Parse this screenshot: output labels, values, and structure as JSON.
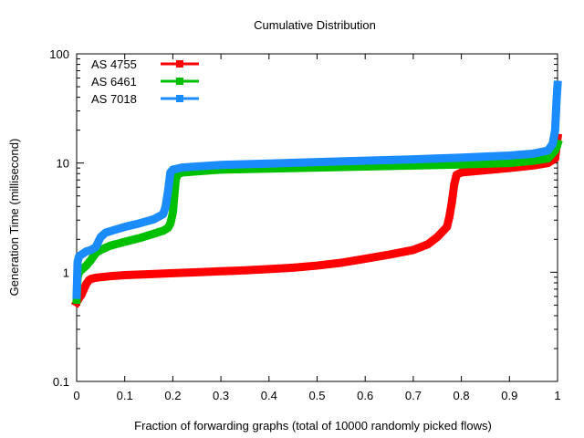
{
  "chart_data": {
    "type": "line",
    "title": "Cumulative Distribution",
    "xlabel": "Fraction of forwarding graphs (total of 10000 randomly picked flows)",
    "ylabel": "Generation Time (millisecond)",
    "xlim": [
      0,
      1
    ],
    "ylim": [
      0.1,
      100
    ],
    "yscale": "log",
    "grid": false,
    "legend_position": "top-left",
    "x_ticks": [
      {
        "value": 0,
        "label": "0"
      },
      {
        "value": 0.1,
        "label": "0.1"
      },
      {
        "value": 0.2,
        "label": "0.2"
      },
      {
        "value": 0.3,
        "label": "0.3"
      },
      {
        "value": 0.4,
        "label": "0.4"
      },
      {
        "value": 0.5,
        "label": "0.5"
      },
      {
        "value": 0.6,
        "label": "0.6"
      },
      {
        "value": 0.7,
        "label": "0.7"
      },
      {
        "value": 0.8,
        "label": "0.8"
      },
      {
        "value": 0.9,
        "label": "0.9"
      },
      {
        "value": 1,
        "label": "1"
      }
    ],
    "y_ticks": [
      {
        "value": 0.1,
        "label": "0.1"
      },
      {
        "value": 1,
        "label": "1"
      },
      {
        "value": 10,
        "label": "10"
      },
      {
        "value": 100,
        "label": "100"
      }
    ],
    "series": [
      {
        "name": "AS 4755",
        "color": "#ff0000",
        "points": [
          [
            0,
            0.53
          ],
          [
            0.005,
            0.58
          ],
          [
            0.01,
            0.62
          ],
          [
            0.015,
            0.7
          ],
          [
            0.02,
            0.78
          ],
          [
            0.025,
            0.84
          ],
          [
            0.03,
            0.87
          ],
          [
            0.04,
            0.89
          ],
          [
            0.05,
            0.9
          ],
          [
            0.07,
            0.92
          ],
          [
            0.1,
            0.94
          ],
          [
            0.15,
            0.96
          ],
          [
            0.2,
            0.98
          ],
          [
            0.25,
            1.0
          ],
          [
            0.3,
            1.02
          ],
          [
            0.35,
            1.04
          ],
          [
            0.4,
            1.07
          ],
          [
            0.45,
            1.1
          ],
          [
            0.5,
            1.15
          ],
          [
            0.55,
            1.22
          ],
          [
            0.6,
            1.33
          ],
          [
            0.65,
            1.45
          ],
          [
            0.7,
            1.6
          ],
          [
            0.73,
            1.8
          ],
          [
            0.75,
            2.1
          ],
          [
            0.77,
            2.6
          ],
          [
            0.775,
            3.2
          ],
          [
            0.78,
            4.3
          ],
          [
            0.785,
            6.3
          ],
          [
            0.79,
            7.8
          ],
          [
            0.8,
            8.2
          ],
          [
            0.85,
            8.6
          ],
          [
            0.9,
            9.0
          ],
          [
            0.95,
            9.5
          ],
          [
            0.98,
            10.0
          ],
          [
            0.995,
            11
          ],
          [
            1.0,
            17
          ]
        ]
      },
      {
        "name": "AS 6461",
        "color": "#00c000",
        "points": [
          [
            0,
            0.56
          ],
          [
            0.002,
            0.9
          ],
          [
            0.005,
            1.0
          ],
          [
            0.01,
            1.05
          ],
          [
            0.02,
            1.15
          ],
          [
            0.03,
            1.3
          ],
          [
            0.04,
            1.5
          ],
          [
            0.05,
            1.6
          ],
          [
            0.07,
            1.75
          ],
          [
            0.1,
            1.9
          ],
          [
            0.13,
            2.05
          ],
          [
            0.16,
            2.25
          ],
          [
            0.18,
            2.4
          ],
          [
            0.19,
            2.55
          ],
          [
            0.195,
            2.8
          ],
          [
            0.2,
            3.5
          ],
          [
            0.203,
            5.0
          ],
          [
            0.206,
            7.0
          ],
          [
            0.21,
            7.9
          ],
          [
            0.22,
            8.2
          ],
          [
            0.25,
            8.4
          ],
          [
            0.3,
            8.7
          ],
          [
            0.4,
            8.9
          ],
          [
            0.5,
            9.1
          ],
          [
            0.6,
            9.3
          ],
          [
            0.7,
            9.5
          ],
          [
            0.8,
            9.7
          ],
          [
            0.9,
            10.0
          ],
          [
            0.95,
            10.5
          ],
          [
            0.98,
            11
          ],
          [
            0.995,
            13
          ],
          [
            1.0,
            15
          ]
        ]
      },
      {
        "name": "AS 7018",
        "color": "#1a8cff",
        "points": [
          [
            0,
            0.62
          ],
          [
            0.002,
            1.25
          ],
          [
            0.005,
            1.4
          ],
          [
            0.01,
            1.45
          ],
          [
            0.02,
            1.55
          ],
          [
            0.03,
            1.6
          ],
          [
            0.04,
            1.7
          ],
          [
            0.045,
            1.9
          ],
          [
            0.05,
            2.1
          ],
          [
            0.06,
            2.3
          ],
          [
            0.08,
            2.45
          ],
          [
            0.1,
            2.6
          ],
          [
            0.13,
            2.8
          ],
          [
            0.16,
            3.05
          ],
          [
            0.18,
            3.4
          ],
          [
            0.185,
            4.0
          ],
          [
            0.19,
            5.5
          ],
          [
            0.195,
            8.2
          ],
          [
            0.2,
            8.7
          ],
          [
            0.22,
            9.1
          ],
          [
            0.25,
            9.3
          ],
          [
            0.3,
            9.6
          ],
          [
            0.4,
            9.9
          ],
          [
            0.5,
            10.2
          ],
          [
            0.6,
            10.5
          ],
          [
            0.7,
            10.8
          ],
          [
            0.8,
            11.2
          ],
          [
            0.9,
            11.7
          ],
          [
            0.95,
            12.2
          ],
          [
            0.98,
            13
          ],
          [
            0.99,
            15
          ],
          [
            0.995,
            20
          ],
          [
            0.998,
            38
          ],
          [
            1.0,
            52
          ]
        ]
      }
    ]
  }
}
